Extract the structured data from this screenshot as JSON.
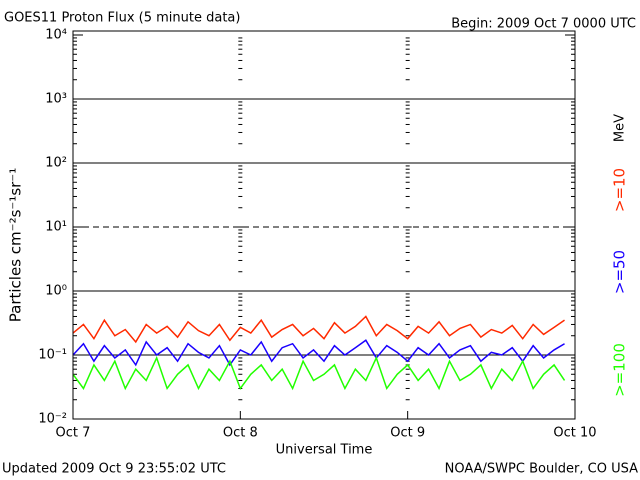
{
  "chart_data": {
    "type": "line",
    "title": "GOES11 Proton Flux (5 minute data)",
    "subtitle": "Begin: 2009 Oct 7 0000 UTC",
    "xlabel": "Universal Time",
    "ylabel": "Particles cm⁻²s⁻¹sr⁻¹",
    "unit": "MeV",
    "footer_left": "Updated 2009 Oct  9 23:55:02 UTC",
    "footer_right": "NOAA/SWPC Boulder, CO USA",
    "log_y": true,
    "xlim": [
      0,
      72
    ],
    "xticks": [
      {
        "value": 0,
        "label": "Oct 7"
      },
      {
        "value": 24,
        "label": "Oct 8"
      },
      {
        "value": 48,
        "label": "Oct 9"
      },
      {
        "value": 72,
        "label": "Oct 10"
      }
    ],
    "ylim": [
      0.01,
      10000
    ],
    "yticks": [
      {
        "value": 0.01,
        "label": "10⁻²"
      },
      {
        "value": 0.1,
        "label": "10⁻¹"
      },
      {
        "value": 1,
        "label": "10⁰"
      },
      {
        "value": 10,
        "label": "10¹"
      },
      {
        "value": 100,
        "label": "10²"
      },
      {
        "value": 1000,
        "label": "10³"
      },
      {
        "value": 10000,
        "label": "10⁴"
      }
    ],
    "grid_styles": [
      "none",
      "solid",
      "solid",
      "dashed",
      "solid",
      "solid",
      "none"
    ],
    "x": [
      0,
      1.5,
      3,
      4.5,
      6,
      7.5,
      9,
      10.5,
      12,
      13.5,
      15,
      16.5,
      18,
      19.5,
      21,
      22.5,
      24,
      25.5,
      27,
      28.5,
      30,
      31.5,
      33,
      34.5,
      36,
      37.5,
      39,
      40.5,
      42,
      43.5,
      45,
      46.5,
      48,
      49.5,
      51,
      52.5,
      54,
      55.5,
      57,
      58.5,
      60,
      61.5,
      63,
      64.5,
      66,
      67.5,
      69,
      70.5
    ],
    "series": [
      {
        "name": ">=10",
        "color": "#ff2a00",
        "values": [
          0.22,
          0.3,
          0.18,
          0.35,
          0.2,
          0.25,
          0.16,
          0.3,
          0.22,
          0.28,
          0.19,
          0.33,
          0.24,
          0.2,
          0.3,
          0.17,
          0.27,
          0.22,
          0.35,
          0.19,
          0.25,
          0.3,
          0.2,
          0.26,
          0.18,
          0.32,
          0.22,
          0.28,
          0.4,
          0.2,
          0.3,
          0.24,
          0.18,
          0.28,
          0.22,
          0.33,
          0.2,
          0.26,
          0.3,
          0.19,
          0.25,
          0.22,
          0.29,
          0.18,
          0.3,
          0.21,
          0.27,
          0.35
        ]
      },
      {
        "name": ">=50",
        "color": "#1a00ff",
        "values": [
          0.1,
          0.15,
          0.08,
          0.14,
          0.09,
          0.12,
          0.07,
          0.16,
          0.1,
          0.13,
          0.08,
          0.15,
          0.11,
          0.09,
          0.14,
          0.07,
          0.12,
          0.1,
          0.16,
          0.08,
          0.13,
          0.15,
          0.09,
          0.12,
          0.08,
          0.14,
          0.1,
          0.13,
          0.17,
          0.09,
          0.14,
          0.11,
          0.08,
          0.13,
          0.1,
          0.15,
          0.09,
          0.12,
          0.14,
          0.08,
          0.11,
          0.1,
          0.13,
          0.08,
          0.14,
          0.09,
          0.12,
          0.15
        ]
      },
      {
        "name": ">=100",
        "color": "#22ff00",
        "values": [
          0.05,
          0.03,
          0.07,
          0.04,
          0.08,
          0.03,
          0.06,
          0.04,
          0.09,
          0.03,
          0.05,
          0.07,
          0.03,
          0.06,
          0.04,
          0.08,
          0.03,
          0.05,
          0.07,
          0.04,
          0.06,
          0.03,
          0.08,
          0.04,
          0.05,
          0.07,
          0.03,
          0.06,
          0.04,
          0.09,
          0.03,
          0.05,
          0.07,
          0.04,
          0.06,
          0.03,
          0.08,
          0.04,
          0.05,
          0.07,
          0.03,
          0.06,
          0.04,
          0.08,
          0.03,
          0.05,
          0.07,
          0.04
        ]
      }
    ]
  }
}
